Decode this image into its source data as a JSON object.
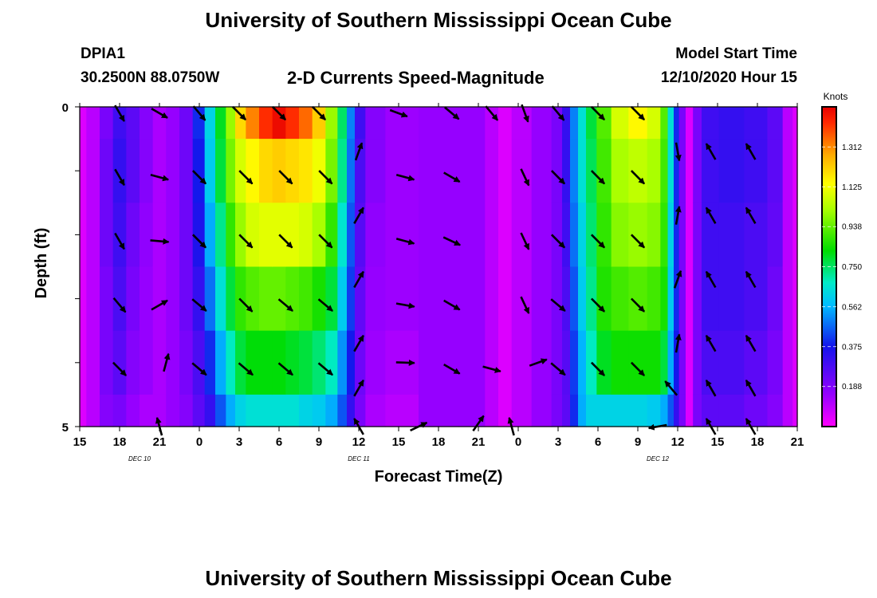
{
  "header": {
    "title": "University of Southern Mississippi Ocean Cube",
    "station": "DPIA1",
    "coords": "30.2500N 88.0750W",
    "subtitle": "2-D Currents Speed-Magnitude",
    "model_label": "Model Start Time",
    "model_time": "12/10/2020 Hour 15"
  },
  "footer": {
    "title": "University of Southern Mississippi Ocean Cube"
  },
  "chart_data": {
    "type": "heatmap",
    "xlabel": "Forecast Time(Z)",
    "ylabel": "Depth (ft)",
    "x_tick_labels": [
      "15",
      "18",
      "21",
      "0",
      "3",
      "6",
      "9",
      "12",
      "15",
      "18",
      "21",
      "0",
      "3",
      "6",
      "9",
      "12",
      "15",
      "18",
      "21"
    ],
    "x_range_hours": [
      0,
      54
    ],
    "y_tick_labels": [
      "0",
      "5"
    ],
    "ylim": [
      0,
      5
    ],
    "y_inverted": true,
    "date_labels": [
      {
        "label": "DEC 10",
        "hour": 4.5
      },
      {
        "label": "DEC 11",
        "hour": 21
      },
      {
        "label": "DEC 12",
        "hour": 43.5
      }
    ],
    "colorbar": {
      "title": "Knots",
      "tick_labels": [
        "1.312",
        "1.125",
        "0.938",
        "0.750",
        "0.562",
        "0.375",
        "0.188"
      ],
      "tick_values": [
        1.312,
        1.125,
        0.938,
        0.75,
        0.562,
        0.375,
        0.188
      ],
      "range": [
        0,
        1.5
      ]
    },
    "depth_levels": [
      0,
      1,
      2,
      3,
      4,
      5
    ],
    "speed_profiles": [
      {
        "hour": 0.0,
        "values": [
          0.05,
          0.05,
          0.05,
          0.05,
          0.05,
          0.05
        ]
      },
      {
        "hour": 1.0,
        "values": [
          0.1,
          0.1,
          0.1,
          0.1,
          0.1,
          0.1
        ]
      },
      {
        "hour": 2.0,
        "values": [
          0.2,
          0.22,
          0.22,
          0.2,
          0.2,
          0.18
        ]
      },
      {
        "hour": 3.0,
        "values": [
          0.3,
          0.32,
          0.3,
          0.28,
          0.25,
          0.2
        ]
      },
      {
        "hour": 4.0,
        "values": [
          0.25,
          0.25,
          0.22,
          0.2,
          0.18,
          0.15
        ]
      },
      {
        "hour": 5.0,
        "values": [
          0.18,
          0.18,
          0.16,
          0.15,
          0.15,
          0.12
        ]
      },
      {
        "hour": 6.0,
        "values": [
          0.12,
          0.12,
          0.12,
          0.12,
          0.12,
          0.12
        ]
      },
      {
        "hour": 7.0,
        "values": [
          0.15,
          0.15,
          0.15,
          0.15,
          0.15,
          0.15
        ]
      },
      {
        "hour": 8.0,
        "values": [
          0.22,
          0.22,
          0.22,
          0.22,
          0.2,
          0.18
        ]
      },
      {
        "hour": 9.0,
        "values": [
          0.4,
          0.38,
          0.36,
          0.32,
          0.28,
          0.25
        ]
      },
      {
        "hour": 9.8,
        "values": [
          0.62,
          0.6,
          0.55,
          0.48,
          0.4,
          0.32
        ]
      },
      {
        "hour": 10.6,
        "values": [
          0.8,
          0.78,
          0.72,
          0.65,
          0.55,
          0.45
        ]
      },
      {
        "hour": 11.4,
        "values": [
          1.0,
          0.96,
          0.88,
          0.78,
          0.68,
          0.55
        ]
      },
      {
        "hour": 12.0,
        "values": [
          1.2,
          1.08,
          1.0,
          0.88,
          0.78,
          0.62
        ]
      },
      {
        "hour": 13.0,
        "values": [
          1.32,
          1.15,
          1.08,
          0.92,
          0.82,
          0.65
        ]
      },
      {
        "hour": 14.0,
        "values": [
          1.42,
          1.2,
          1.1,
          0.94,
          0.82,
          0.65
        ]
      },
      {
        "hour": 15.0,
        "values": [
          1.48,
          1.22,
          1.1,
          0.94,
          0.82,
          0.65
        ]
      },
      {
        "hour": 16.0,
        "values": [
          1.42,
          1.2,
          1.1,
          0.92,
          0.8,
          0.65
        ]
      },
      {
        "hour": 17.0,
        "values": [
          1.35,
          1.18,
          1.08,
          0.9,
          0.78,
          0.62
        ]
      },
      {
        "hour": 18.0,
        "values": [
          1.22,
          1.12,
          1.02,
          0.85,
          0.74,
          0.6
        ]
      },
      {
        "hour": 19.0,
        "values": [
          1.0,
          0.96,
          0.88,
          0.78,
          0.68,
          0.55
        ]
      },
      {
        "hour": 19.8,
        "values": [
          0.75,
          0.72,
          0.66,
          0.6,
          0.52,
          0.45
        ]
      },
      {
        "hour": 20.4,
        "values": [
          0.5,
          0.48,
          0.45,
          0.42,
          0.38,
          0.32
        ]
      },
      {
        "hour": 21.0,
        "values": [
          0.3,
          0.28,
          0.26,
          0.24,
          0.22,
          0.2
        ]
      },
      {
        "hour": 22.0,
        "values": [
          0.18,
          0.18,
          0.16,
          0.15,
          0.14,
          0.12
        ]
      },
      {
        "hour": 24.0,
        "values": [
          0.14,
          0.14,
          0.14,
          0.14,
          0.12,
          0.1
        ]
      },
      {
        "hour": 27.0,
        "values": [
          0.15,
          0.15,
          0.15,
          0.15,
          0.15,
          0.15
        ]
      },
      {
        "hour": 30.0,
        "values": [
          0.15,
          0.15,
          0.15,
          0.15,
          0.15,
          0.15
        ]
      },
      {
        "hour": 31.0,
        "values": [
          0.1,
          0.1,
          0.1,
          0.1,
          0.1,
          0.1
        ]
      },
      {
        "hour": 32.0,
        "values": [
          0.05,
          0.05,
          0.05,
          0.05,
          0.05,
          0.05
        ]
      },
      {
        "hour": 33.0,
        "values": [
          0.1,
          0.1,
          0.1,
          0.1,
          0.1,
          0.1
        ]
      },
      {
        "hour": 35.0,
        "values": [
          0.15,
          0.15,
          0.15,
          0.15,
          0.15,
          0.15
        ]
      },
      {
        "hour": 36.0,
        "values": [
          0.2,
          0.2,
          0.2,
          0.2,
          0.2,
          0.2
        ]
      },
      {
        "hour": 36.6,
        "values": [
          0.32,
          0.32,
          0.3,
          0.28,
          0.26,
          0.25
        ]
      },
      {
        "hour": 37.2,
        "values": [
          0.5,
          0.5,
          0.48,
          0.45,
          0.42,
          0.4
        ]
      },
      {
        "hour": 37.8,
        "values": [
          0.65,
          0.65,
          0.62,
          0.6,
          0.56,
          0.55
        ]
      },
      {
        "hour": 38.4,
        "values": [
          0.78,
          0.76,
          0.74,
          0.72,
          0.68,
          0.62
        ]
      },
      {
        "hour": 39.4,
        "values": [
          0.92,
          0.9,
          0.88,
          0.86,
          0.8,
          0.62
        ]
      },
      {
        "hour": 40.6,
        "values": [
          1.08,
          1.02,
          0.98,
          0.9,
          0.84,
          0.62
        ]
      },
      {
        "hour": 42.0,
        "values": [
          1.15,
          1.05,
          1.0,
          0.92,
          0.84,
          0.62
        ]
      },
      {
        "hour": 43.4,
        "values": [
          1.08,
          1.02,
          0.98,
          0.9,
          0.84,
          0.6
        ]
      },
      {
        "hour": 44.0,
        "values": [
          0.92,
          0.9,
          0.88,
          0.85,
          0.78,
          0.55
        ]
      },
      {
        "hour": 44.5,
        "values": [
          0.65,
          0.65,
          0.62,
          0.6,
          0.55,
          0.45
        ]
      },
      {
        "hour": 44.9,
        "values": [
          0.4,
          0.4,
          0.4,
          0.4,
          0.38,
          0.32
        ]
      },
      {
        "hour": 45.3,
        "values": [
          0.2,
          0.2,
          0.2,
          0.2,
          0.2,
          0.2
        ]
      },
      {
        "hour": 45.9,
        "values": [
          0.05,
          0.05,
          0.05,
          0.05,
          0.05,
          0.05
        ]
      },
      {
        "hour": 46.4,
        "values": [
          0.2,
          0.2,
          0.2,
          0.2,
          0.2,
          0.2
        ]
      },
      {
        "hour": 47.2,
        "values": [
          0.3,
          0.3,
          0.3,
          0.3,
          0.28,
          0.25
        ]
      },
      {
        "hour": 49.0,
        "values": [
          0.32,
          0.32,
          0.3,
          0.3,
          0.28,
          0.25
        ]
      },
      {
        "hour": 51.0,
        "values": [
          0.3,
          0.3,
          0.28,
          0.28,
          0.25,
          0.22
        ]
      },
      {
        "hour": 52.5,
        "values": [
          0.25,
          0.25,
          0.24,
          0.22,
          0.2,
          0.18
        ]
      },
      {
        "hour": 53.3,
        "values": [
          0.1,
          0.1,
          0.1,
          0.1,
          0.1,
          0.1
        ]
      },
      {
        "hour": 54.0,
        "values": [
          0.05,
          0.05,
          0.05,
          0.05,
          0.05,
          0.05
        ]
      }
    ],
    "vectors": [
      {
        "hour": 3.0,
        "depth": 0.1,
        "angle": 60
      },
      {
        "hour": 6.0,
        "depth": 0.1,
        "angle": 30
      },
      {
        "hour": 9.0,
        "depth": 0.1,
        "angle": 50
      },
      {
        "hour": 12.0,
        "depth": 0.1,
        "angle": 45
      },
      {
        "hour": 15.0,
        "depth": 0.1,
        "angle": 45
      },
      {
        "hour": 18.0,
        "depth": 0.1,
        "angle": 45
      },
      {
        "hour": 24.0,
        "depth": 0.1,
        "angle": 20
      },
      {
        "hour": 28.0,
        "depth": 0.1,
        "angle": 40
      },
      {
        "hour": 31.0,
        "depth": 0.1,
        "angle": 50
      },
      {
        "hour": 33.5,
        "depth": 0.1,
        "angle": 70
      },
      {
        "hour": 36.0,
        "depth": 0.1,
        "angle": 50
      },
      {
        "hour": 39.0,
        "depth": 0.1,
        "angle": 45
      },
      {
        "hour": 42.0,
        "depth": 0.1,
        "angle": 45
      },
      {
        "hour": 21.0,
        "depth": 0.7,
        "angle": -70
      },
      {
        "hour": 45.0,
        "depth": 0.7,
        "angle": 80
      },
      {
        "hour": 47.5,
        "depth": 0.7,
        "angle": -120
      },
      {
        "hour": 50.5,
        "depth": 0.7,
        "angle": -120
      },
      {
        "hour": 3.0,
        "depth": 1.1,
        "angle": 60
      },
      {
        "hour": 6.0,
        "depth": 1.1,
        "angle": 15
      },
      {
        "hour": 9.0,
        "depth": 1.1,
        "angle": 45
      },
      {
        "hour": 12.5,
        "depth": 1.1,
        "angle": 45
      },
      {
        "hour": 15.5,
        "depth": 1.1,
        "angle": 45
      },
      {
        "hour": 18.5,
        "depth": 1.1,
        "angle": 45
      },
      {
        "hour": 24.5,
        "depth": 1.1,
        "angle": 15
      },
      {
        "hour": 28.0,
        "depth": 1.1,
        "angle": 30
      },
      {
        "hour": 33.5,
        "depth": 1.1,
        "angle": 65
      },
      {
        "hour": 36.0,
        "depth": 1.1,
        "angle": 45
      },
      {
        "hour": 39.0,
        "depth": 1.1,
        "angle": 45
      },
      {
        "hour": 42.0,
        "depth": 1.1,
        "angle": 45
      },
      {
        "hour": 21.0,
        "depth": 1.7,
        "angle": -60
      },
      {
        "hour": 45.0,
        "depth": 1.7,
        "angle": -80
      },
      {
        "hour": 47.5,
        "depth": 1.7,
        "angle": -120
      },
      {
        "hour": 50.5,
        "depth": 1.7,
        "angle": -120
      },
      {
        "hour": 3.0,
        "depth": 2.1,
        "angle": 60
      },
      {
        "hour": 6.0,
        "depth": 2.1,
        "angle": 5
      },
      {
        "hour": 9.0,
        "depth": 2.1,
        "angle": 45
      },
      {
        "hour": 12.5,
        "depth": 2.1,
        "angle": 45
      },
      {
        "hour": 15.5,
        "depth": 2.1,
        "angle": 45
      },
      {
        "hour": 18.5,
        "depth": 2.1,
        "angle": 45
      },
      {
        "hour": 24.5,
        "depth": 2.1,
        "angle": 15
      },
      {
        "hour": 28.0,
        "depth": 2.1,
        "angle": 25
      },
      {
        "hour": 33.5,
        "depth": 2.1,
        "angle": 65
      },
      {
        "hour": 36.0,
        "depth": 2.1,
        "angle": 45
      },
      {
        "hour": 39.0,
        "depth": 2.1,
        "angle": 45
      },
      {
        "hour": 42.0,
        "depth": 2.1,
        "angle": 45
      },
      {
        "hour": 21.0,
        "depth": 2.7,
        "angle": -60
      },
      {
        "hour": 45.0,
        "depth": 2.7,
        "angle": -70
      },
      {
        "hour": 47.5,
        "depth": 2.7,
        "angle": -120
      },
      {
        "hour": 50.5,
        "depth": 2.7,
        "angle": -120
      },
      {
        "hour": 3.0,
        "depth": 3.1,
        "angle": 50
      },
      {
        "hour": 6.0,
        "depth": 3.1,
        "angle": -30
      },
      {
        "hour": 9.0,
        "depth": 3.1,
        "angle": 40
      },
      {
        "hour": 12.5,
        "depth": 3.1,
        "angle": 45
      },
      {
        "hour": 15.5,
        "depth": 3.1,
        "angle": 40
      },
      {
        "hour": 18.5,
        "depth": 3.1,
        "angle": 40
      },
      {
        "hour": 24.5,
        "depth": 3.1,
        "angle": 10
      },
      {
        "hour": 28.0,
        "depth": 3.1,
        "angle": 30
      },
      {
        "hour": 33.5,
        "depth": 3.1,
        "angle": 65
      },
      {
        "hour": 36.0,
        "depth": 3.1,
        "angle": 40
      },
      {
        "hour": 39.0,
        "depth": 3.1,
        "angle": 45
      },
      {
        "hour": 42.0,
        "depth": 3.1,
        "angle": 45
      },
      {
        "hour": 21.0,
        "depth": 3.7,
        "angle": -60
      },
      {
        "hour": 45.0,
        "depth": 3.7,
        "angle": -80
      },
      {
        "hour": 47.5,
        "depth": 3.7,
        "angle": -120
      },
      {
        "hour": 50.5,
        "depth": 3.7,
        "angle": -120
      },
      {
        "hour": 3.0,
        "depth": 4.1,
        "angle": 45
      },
      {
        "hour": 6.5,
        "depth": 4.0,
        "angle": -75
      },
      {
        "hour": 9.0,
        "depth": 4.1,
        "angle": 40
      },
      {
        "hour": 12.5,
        "depth": 4.1,
        "angle": 40
      },
      {
        "hour": 15.5,
        "depth": 4.1,
        "angle": 40
      },
      {
        "hour": 18.5,
        "depth": 4.1,
        "angle": 40
      },
      {
        "hour": 24.5,
        "depth": 4.0,
        "angle": 2
      },
      {
        "hour": 28.0,
        "depth": 4.1,
        "angle": 30
      },
      {
        "hour": 31.0,
        "depth": 4.1,
        "angle": 15
      },
      {
        "hour": 34.5,
        "depth": 4.0,
        "angle": -20
      },
      {
        "hour": 36.0,
        "depth": 4.1,
        "angle": 40
      },
      {
        "hour": 39.0,
        "depth": 4.1,
        "angle": 45
      },
      {
        "hour": 42.0,
        "depth": 4.1,
        "angle": 45
      },
      {
        "hour": 21.0,
        "depth": 4.4,
        "angle": -60
      },
      {
        "hour": 44.5,
        "depth": 4.4,
        "angle": -130
      },
      {
        "hour": 47.5,
        "depth": 4.4,
        "angle": -120
      },
      {
        "hour": 50.5,
        "depth": 4.4,
        "angle": -120
      },
      {
        "hour": 6.0,
        "depth": 5.0,
        "angle": -105
      },
      {
        "hour": 21.0,
        "depth": 5.0,
        "angle": -120
      },
      {
        "hour": 25.5,
        "depth": 5.0,
        "angle": -25
      },
      {
        "hour": 30.0,
        "depth": 4.95,
        "angle": -55
      },
      {
        "hour": 32.5,
        "depth": 5.0,
        "angle": -105
      },
      {
        "hour": 43.5,
        "depth": 5.0,
        "angle": 170
      },
      {
        "hour": 47.5,
        "depth": 5.0,
        "angle": -120
      },
      {
        "hour": 50.5,
        "depth": 5.0,
        "angle": -120
      }
    ]
  }
}
